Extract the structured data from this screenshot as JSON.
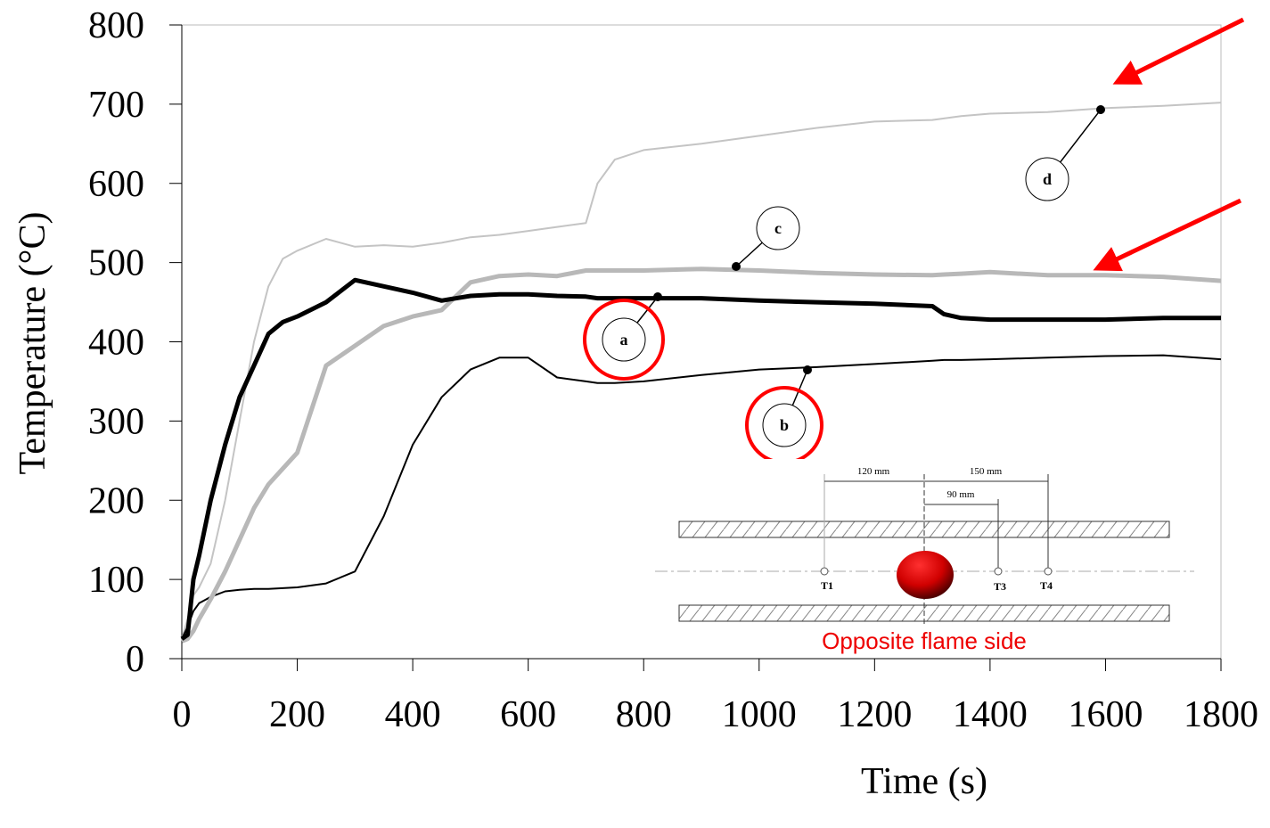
{
  "chart_data": {
    "type": "line",
    "x_label": "Time (s)",
    "y_label": "Temperature (°C)",
    "x": [
      0,
      10,
      20,
      30,
      50,
      75,
      100,
      125,
      150,
      175,
      200,
      250,
      300,
      350,
      400,
      450,
      500,
      550,
      600,
      650,
      700,
      720,
      750,
      800,
      900,
      1000,
      1100,
      1200,
      1300,
      1320,
      1350,
      1400,
      1500,
      1600,
      1700,
      1800
    ],
    "series": [
      {
        "name": "a",
        "color": "#000000",
        "width": 5,
        "values": [
          25,
          30,
          100,
          130,
          200,
          270,
          330,
          370,
          410,
          425,
          432,
          450,
          478,
          470,
          462,
          452,
          458,
          460,
          460,
          458,
          457,
          455,
          455,
          455,
          455,
          452,
          450,
          448,
          445,
          435,
          430,
          428,
          428,
          428,
          430,
          430
        ]
      },
      {
        "name": "b",
        "color": "#000000",
        "width": 2,
        "values": [
          25,
          40,
          60,
          70,
          78,
          85,
          87,
          88,
          88,
          89,
          90,
          95,
          110,
          180,
          270,
          330,
          365,
          380,
          380,
          355,
          350,
          348,
          348,
          350,
          358,
          365,
          368,
          372,
          376,
          377,
          377,
          378,
          380,
          382,
          383,
          378
        ]
      },
      {
        "name": "c",
        "color": "#b8b8b8",
        "width": 5,
        "values": [
          22,
          25,
          35,
          50,
          75,
          110,
          150,
          190,
          220,
          240,
          260,
          370,
          395,
          420,
          432,
          440,
          475,
          483,
          485,
          483,
          490,
          490,
          490,
          490,
          492,
          490,
          487,
          485,
          484,
          485,
          486,
          488,
          484,
          484,
          482,
          477
        ]
      },
      {
        "name": "d",
        "color": "#c4c4c4",
        "width": 2,
        "values": [
          25,
          50,
          80,
          90,
          120,
          200,
          300,
          400,
          470,
          505,
          515,
          530,
          520,
          522,
          520,
          525,
          532,
          535,
          540,
          545,
          550,
          600,
          630,
          642,
          650,
          660,
          670,
          678,
          680,
          682,
          685,
          688,
          690,
          695,
          698,
          702
        ]
      }
    ],
    "xlim": [
      0,
      1800
    ],
    "ylim": [
      0,
      800
    ],
    "xticks": [
      0,
      200,
      400,
      600,
      800,
      1000,
      1200,
      1400,
      1600,
      1800
    ],
    "yticks": [
      0,
      100,
      200,
      300,
      400,
      500,
      600,
      700,
      800
    ],
    "inset": {
      "dimensions": [
        "120 mm",
        "150 mm",
        "90 mm"
      ],
      "sensors": [
        "T1",
        "T3",
        "T4"
      ],
      "caption": "Opposite flame side"
    }
  }
}
